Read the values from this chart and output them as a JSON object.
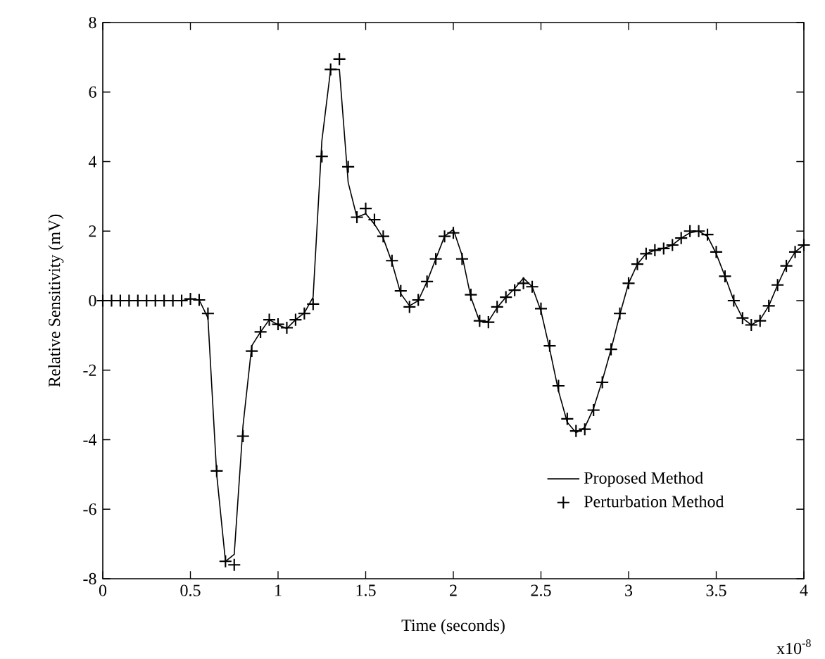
{
  "chart_data": {
    "type": "line",
    "xlabel": "Time (seconds)",
    "ylabel": "Relative Sensitivity (mV)",
    "annotations": [
      "x10$^{-8}$"
    ],
    "xlim": [
      0,
      4
    ],
    "ylim": [
      -8,
      8
    ],
    "xticks": [
      0,
      0.5,
      1,
      1.5,
      2,
      2.5,
      3,
      3.5,
      4
    ],
    "yticks": [
      -8,
      -6,
      -4,
      -2,
      0,
      2,
      4,
      6,
      8
    ],
    "grid": false,
    "legend": "bottom right",
    "series": [
      {
        "name": "Proposed Method",
        "type": "line",
        "color": "#000000",
        "marker": "none",
        "line_style": "solid",
        "x": [
          0,
          0.05,
          0.1,
          0.15,
          0.2,
          0.25,
          0.3,
          0.35,
          0.4,
          0.45,
          0.5,
          0.55,
          0.6,
          0.65,
          0.7,
          0.75,
          0.8,
          0.85,
          0.9,
          0.95,
          1.0,
          1.05,
          1.1,
          1.15,
          1.2,
          1.25,
          1.3,
          1.35,
          1.4,
          1.45,
          1.5,
          1.55,
          1.6,
          1.65,
          1.7,
          1.75,
          1.8,
          1.85,
          1.9,
          1.95,
          2.0,
          2.05,
          2.1,
          2.15,
          2.2,
          2.25,
          2.3,
          2.35,
          2.4,
          2.45,
          2.5,
          2.55,
          2.6,
          2.65,
          2.7,
          2.75,
          2.8,
          2.85,
          2.9,
          2.95,
          3.0,
          3.05,
          3.1,
          3.15,
          3.2,
          3.25,
          3.3,
          3.35,
          3.4,
          3.45,
          3.5,
          3.55,
          3.6,
          3.65,
          3.7,
          3.75,
          3.8,
          3.85,
          3.9,
          3.95,
          4.0
        ],
        "values": [
          0,
          0,
          0,
          0,
          0,
          0,
          0,
          0,
          0,
          0,
          0.05,
          0.02,
          -0.5,
          -5.0,
          -7.5,
          -7.3,
          -3.6,
          -1.3,
          -0.9,
          -0.55,
          -0.7,
          -0.8,
          -0.55,
          -0.35,
          0.1,
          4.6,
          6.65,
          6.65,
          3.4,
          2.4,
          2.5,
          2.2,
          1.8,
          1.1,
          0.2,
          -0.15,
          0.0,
          0.55,
          1.2,
          1.85,
          2.05,
          1.3,
          0.1,
          -0.6,
          -0.6,
          -0.2,
          0.1,
          0.35,
          0.65,
          0.4,
          -0.3,
          -1.4,
          -2.6,
          -3.5,
          -3.8,
          -3.65,
          -3.1,
          -2.3,
          -1.4,
          -0.4,
          0.5,
          1.05,
          1.35,
          1.45,
          1.5,
          1.6,
          1.8,
          1.95,
          2.0,
          1.85,
          1.35,
          0.7,
          0.0,
          -0.5,
          -0.7,
          -0.55,
          -0.15,
          0.45,
          1.0,
          1.4,
          1.6
        ]
      },
      {
        "name": "Perturbation Method",
        "type": "scatter",
        "color": "#000000",
        "marker": "cross",
        "x": [
          0,
          0.05,
          0.1,
          0.15,
          0.2,
          0.25,
          0.3,
          0.35,
          0.4,
          0.45,
          0.5,
          0.55,
          0.6,
          0.65,
          0.7,
          0.75,
          0.8,
          0.85,
          0.9,
          0.95,
          1.0,
          1.05,
          1.1,
          1.15,
          1.2,
          1.25,
          1.3,
          1.35,
          1.4,
          1.45,
          1.5,
          1.55,
          1.6,
          1.65,
          1.7,
          1.75,
          1.8,
          1.85,
          1.9,
          1.95,
          2.0,
          2.05,
          2.1,
          2.15,
          2.2,
          2.25,
          2.3,
          2.35,
          2.4,
          2.45,
          2.5,
          2.55,
          2.6,
          2.65,
          2.7,
          2.75,
          2.8,
          2.85,
          2.9,
          2.95,
          3.0,
          3.05,
          3.1,
          3.15,
          3.2,
          3.25,
          3.3,
          3.35,
          3.4,
          3.45,
          3.5,
          3.55,
          3.6,
          3.65,
          3.7,
          3.75,
          3.8,
          3.85,
          3.9,
          3.95,
          4.0
        ],
        "values": [
          0,
          0,
          0,
          0,
          0,
          0,
          0,
          0,
          0,
          0,
          0.05,
          0.02,
          -0.37,
          -4.9,
          -7.5,
          -7.6,
          -3.9,
          -1.45,
          -0.9,
          -0.55,
          -0.68,
          -0.78,
          -0.55,
          -0.37,
          -0.1,
          4.15,
          6.65,
          6.95,
          3.85,
          2.4,
          2.65,
          2.33,
          1.85,
          1.15,
          0.28,
          -0.18,
          0.02,
          0.55,
          1.2,
          1.85,
          1.95,
          1.2,
          0.17,
          -0.58,
          -0.62,
          -0.18,
          0.1,
          0.3,
          0.5,
          0.4,
          -0.23,
          -1.3,
          -2.45,
          -3.4,
          -3.75,
          -3.7,
          -3.15,
          -2.35,
          -1.4,
          -0.37,
          0.5,
          1.05,
          1.35,
          1.45,
          1.5,
          1.6,
          1.8,
          2.0,
          2.0,
          1.9,
          1.4,
          0.7,
          0.0,
          -0.5,
          -0.7,
          -0.58,
          -0.15,
          0.45,
          1.0,
          1.4,
          1.6
        ]
      }
    ]
  }
}
